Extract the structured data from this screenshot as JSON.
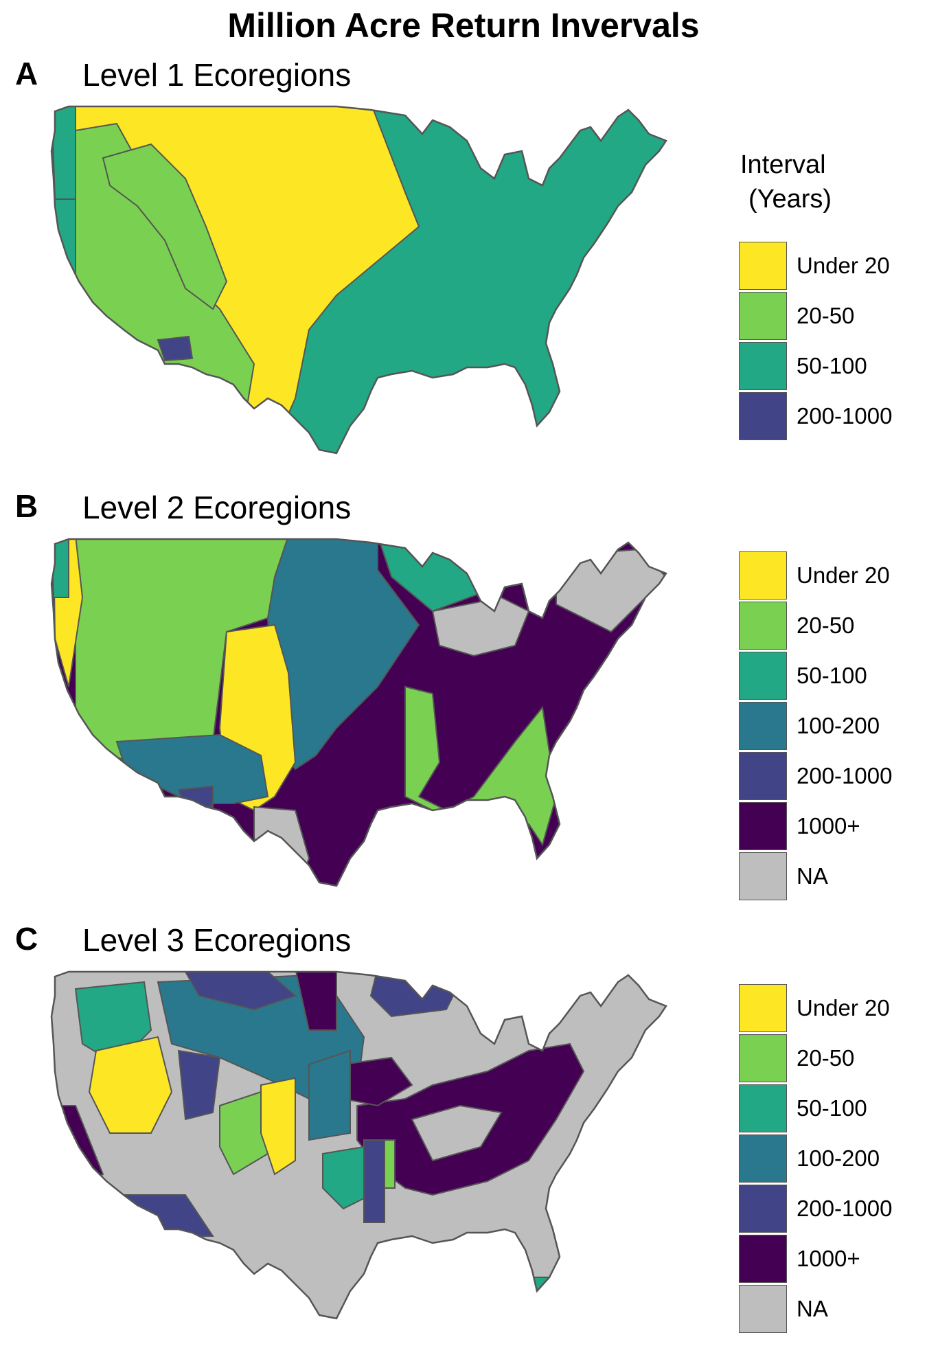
{
  "title": "Million Acre Return Invervals",
  "legend_title_line1": "Interval",
  "legend_title_line2": "(Years)",
  "colors": {
    "under_20": "#fde725",
    "20_50": "#7ad151",
    "50_100": "#22a884",
    "100_200": "#2a788e",
    "200_1000": "#414487",
    "1000_plus": "#440154",
    "na": "#bebebe"
  },
  "panels": [
    {
      "letter": "A",
      "subtitle": "Level 1 Ecoregions",
      "legend": [
        "Under 20",
        "20-50",
        "50-100",
        "200-1000"
      ],
      "legend_keys": [
        "under_20",
        "20_50",
        "50_100",
        "200_1000"
      ]
    },
    {
      "letter": "B",
      "subtitle": "Level 2 Ecoregions",
      "legend": [
        "Under 20",
        "20-50",
        "50-100",
        "100-200",
        "200-1000",
        "1000+",
        "NA"
      ],
      "legend_keys": [
        "under_20",
        "20_50",
        "50_100",
        "100_200",
        "200_1000",
        "1000_plus",
        "na"
      ]
    },
    {
      "letter": "C",
      "subtitle": "Level 3 Ecoregions",
      "legend": [
        "Under 20",
        "20-50",
        "50-100",
        "100-200",
        "200-1000",
        "1000+",
        "NA"
      ],
      "legend_keys": [
        "under_20",
        "20_50",
        "50_100",
        "100_200",
        "200_1000",
        "1000_plus",
        "na"
      ]
    }
  ]
}
